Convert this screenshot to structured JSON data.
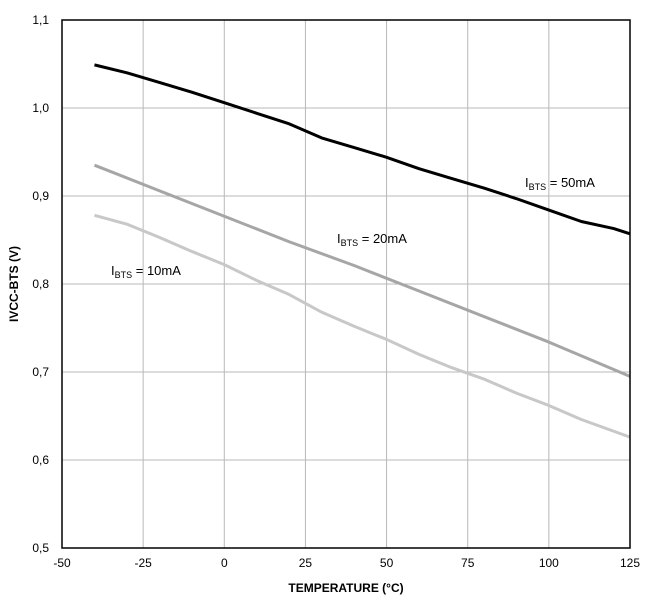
{
  "chart_data": {
    "type": "line",
    "xlabel": "TEMPERATURE (°C)",
    "ylabel": "IVCC-BTS (V)",
    "xlim": [
      -50,
      125
    ],
    "ylim": [
      0.5,
      1.1
    ],
    "xticks": [
      -50,
      -25,
      0,
      25,
      50,
      75,
      100,
      125
    ],
    "yticks": [
      0.5,
      0.6,
      0.7,
      0.8,
      0.9,
      1.0,
      1.1
    ],
    "xtick_labels": [
      "-50",
      "-25",
      "0",
      "25",
      "50",
      "75",
      "100",
      "125"
    ],
    "ytick_labels": [
      "0,5",
      "0,6",
      "0,7",
      "0,8",
      "0,9",
      "1,0",
      "1,1"
    ],
    "grid": true,
    "series": [
      {
        "name": "IBTS = 50mA",
        "label_main": "I",
        "label_sub": "BTS",
        "label_rest": " = 50mA",
        "color": "#000000",
        "x": [
          -40,
          -30,
          -20,
          -10,
          0,
          10,
          20,
          30,
          40,
          50,
          60,
          70,
          80,
          90,
          100,
          110,
          120,
          125
        ],
        "y": [
          1.049,
          1.04,
          1.029,
          1.018,
          1.006,
          0.994,
          0.982,
          0.966,
          0.955,
          0.944,
          0.931,
          0.92,
          0.909,
          0.897,
          0.884,
          0.871,
          0.863,
          0.857
        ]
      },
      {
        "name": "IBTS = 20mA",
        "label_main": "I",
        "label_sub": "BTS",
        "label_rest": " = 20mA",
        "color": "#a6a6a6",
        "x": [
          -40,
          -20,
          0,
          20,
          40,
          60,
          80,
          100,
          125
        ],
        "y": [
          0.935,
          0.906,
          0.877,
          0.848,
          0.821,
          0.792,
          0.763,
          0.734,
          0.695
        ]
      },
      {
        "name": "IBTS = 10mA",
        "label_main": "I",
        "label_sub": "BTS",
        "label_rest": " = 10mA",
        "color": "#c8c8c8",
        "x": [
          -40,
          -30,
          -20,
          -10,
          0,
          10,
          20,
          30,
          40,
          50,
          60,
          70,
          80,
          90,
          100,
          110,
          125
        ],
        "y": [
          0.878,
          0.868,
          0.853,
          0.837,
          0.822,
          0.804,
          0.788,
          0.768,
          0.752,
          0.737,
          0.72,
          0.705,
          0.692,
          0.676,
          0.662,
          0.646,
          0.626
        ]
      }
    ]
  }
}
